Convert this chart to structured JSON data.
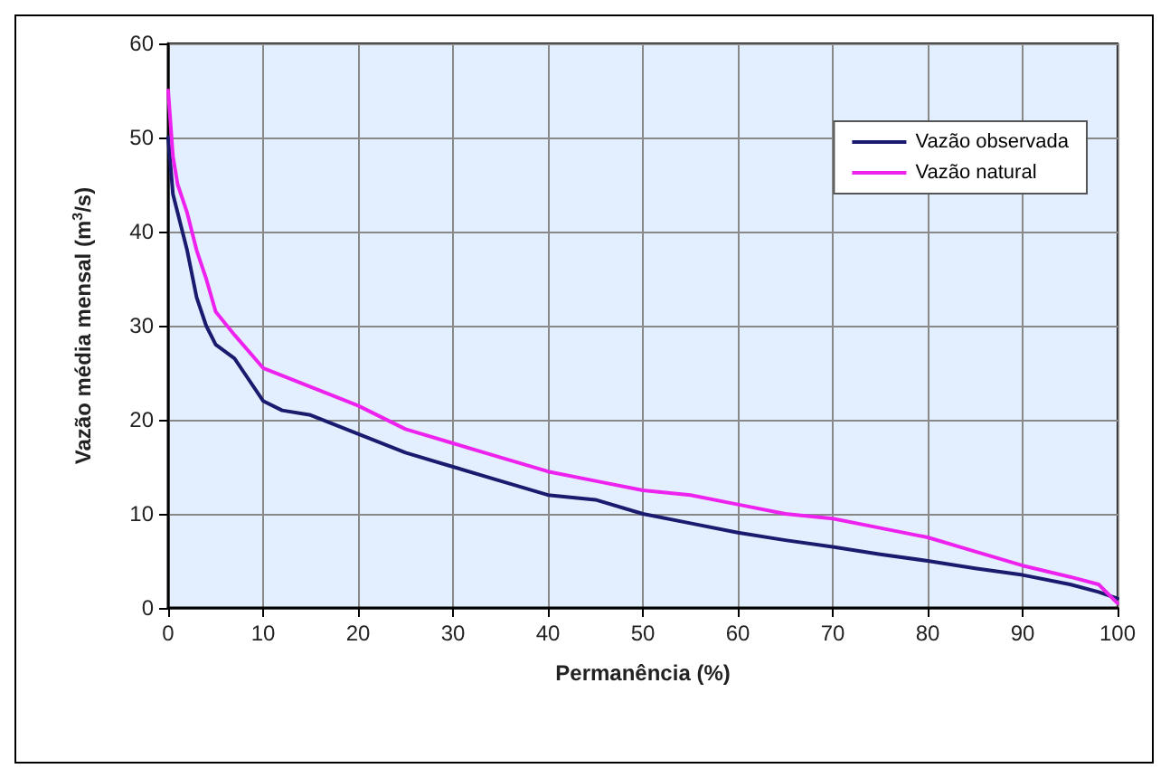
{
  "chart_data": {
    "type": "line",
    "xlabel": "Permanência (%)",
    "ylabel": "Vazão média mensal (m$^{3}$/s)",
    "xlim": [
      0,
      100
    ],
    "xticks": [
      0,
      10,
      20,
      30,
      40,
      50,
      60,
      70,
      80,
      90,
      100
    ],
    "ylim": [
      0,
      60
    ],
    "yticks": [
      0,
      10,
      20,
      30,
      40,
      50,
      60
    ],
    "grid": true,
    "legend": "top right",
    "marker": "none",
    "line_style": "solid",
    "series": [
      {
        "name": "Vazão observada",
        "color": "#1a1a6e",
        "x": [
          0,
          0.5,
          1,
          2,
          3,
          4,
          5,
          7,
          8,
          10,
          12,
          15,
          20,
          25,
          30,
          35,
          40,
          45,
          50,
          55,
          60,
          65,
          70,
          75,
          80,
          85,
          90,
          95,
          98,
          100
        ],
        "values": [
          50,
          44,
          42,
          38,
          33,
          30,
          28,
          26.5,
          25,
          22,
          21,
          20.5,
          18.5,
          16.5,
          15,
          13.5,
          12,
          11.5,
          10,
          9,
          8,
          7.2,
          6.5,
          5.7,
          5,
          4.2,
          3.5,
          2.5,
          1.7,
          1
        ]
      },
      {
        "name": "Vazão natural",
        "color": "#ee22ee",
        "x": [
          0,
          0.5,
          1,
          2,
          3,
          4,
          5,
          7,
          10,
          15,
          20,
          25,
          30,
          35,
          40,
          45,
          50,
          55,
          60,
          65,
          70,
          75,
          80,
          85,
          90,
          95,
          98,
          100
        ],
        "values": [
          55,
          48,
          45,
          42,
          38,
          35,
          31.5,
          29,
          25.5,
          23.5,
          21.5,
          19,
          17.5,
          16,
          14.5,
          13.5,
          12.5,
          12,
          11,
          10,
          9.5,
          8.5,
          7.5,
          6,
          4.5,
          3.3,
          2.5,
          0.5
        ]
      }
    ]
  }
}
